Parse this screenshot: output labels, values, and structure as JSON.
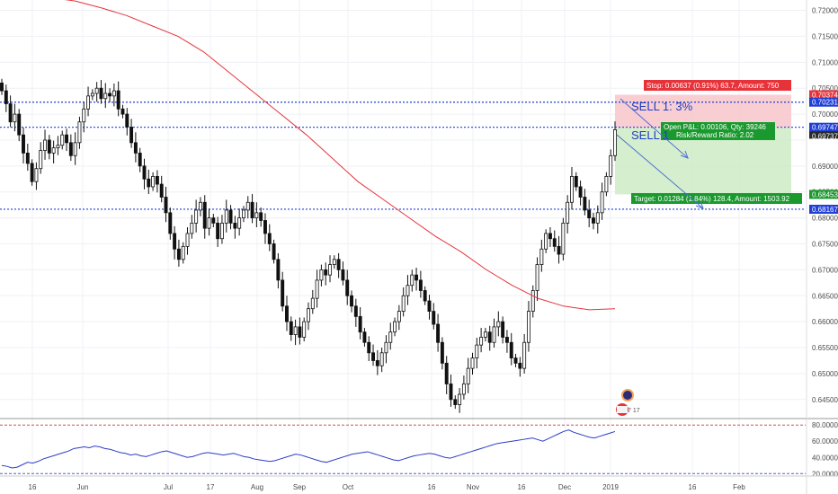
{
  "chart_data": [
    {
      "type": "candlestick",
      "price_axis": {
        "ylim": [
          0.6415,
          0.722
        ],
        "tick_labels": [
          "0.72000",
          "0.71500",
          "0.71000",
          "0.70500",
          "0.70000",
          "0.69500",
          "0.69000",
          "0.68500",
          "0.68000",
          "0.67500",
          "0.67000",
          "0.66500",
          "0.66000",
          "0.65500",
          "0.65000",
          "0.64500"
        ],
        "tick_values": [
          0.72,
          0.715,
          0.71,
          0.705,
          0.7,
          0.695,
          0.69,
          0.685,
          0.68,
          0.675,
          0.67,
          0.665,
          0.66,
          0.655,
          0.65,
          0.645
        ]
      },
      "x_axis_labels": [
        "16",
        "Jun",
        "Jul",
        "17",
        "Aug",
        "Sep",
        "Oct",
        "16",
        "Nov",
        "16",
        "Dec",
        "2019",
        "16",
        "Feb"
      ],
      "candles_close": [
        0.7045,
        0.702,
        0.6985,
        0.7,
        0.696,
        0.6925,
        0.6905,
        0.687,
        0.6895,
        0.693,
        0.695,
        0.6925,
        0.6935,
        0.694,
        0.696,
        0.6945,
        0.692,
        0.6945,
        0.6985,
        0.701,
        0.7035,
        0.704,
        0.705,
        0.703,
        0.704,
        0.7035,
        0.7045,
        0.701,
        0.7,
        0.6975,
        0.6945,
        0.6925,
        0.69,
        0.6875,
        0.686,
        0.688,
        0.6865,
        0.684,
        0.681,
        0.677,
        0.674,
        0.672,
        0.6745,
        0.677,
        0.679,
        0.6815,
        0.683,
        0.678,
        0.68,
        0.679,
        0.676,
        0.679,
        0.6815,
        0.679,
        0.678,
        0.68,
        0.6815,
        0.683,
        0.68,
        0.681,
        0.6795,
        0.677,
        0.675,
        0.672,
        0.668,
        0.663,
        0.66,
        0.6575,
        0.659,
        0.657,
        0.66,
        0.6625,
        0.6645,
        0.668,
        0.67,
        0.669,
        0.671,
        0.672,
        0.67,
        0.668,
        0.665,
        0.663,
        0.661,
        0.658,
        0.656,
        0.654,
        0.6525,
        0.6515,
        0.654,
        0.656,
        0.658,
        0.66,
        0.662,
        0.665,
        0.667,
        0.669,
        0.668,
        0.666,
        0.664,
        0.662,
        0.6595,
        0.656,
        0.652,
        0.648,
        0.645,
        0.644,
        0.646,
        0.648,
        0.651,
        0.653,
        0.6555,
        0.657,
        0.658,
        0.656,
        0.659,
        0.66,
        0.657,
        0.656,
        0.653,
        0.652,
        0.651,
        0.656,
        0.662,
        0.666,
        0.671,
        0.674,
        0.677,
        0.676,
        0.6745,
        0.673,
        0.679,
        0.683,
        0.688,
        0.686,
        0.684,
        0.6815,
        0.68,
        0.679,
        0.681,
        0.685,
        0.688,
        0.692,
        0.697
      ],
      "moving_average_close": [
        0.7225,
        0.7218,
        0.7205,
        0.719,
        0.717,
        0.715,
        0.712,
        0.708,
        0.704,
        0.7,
        0.696,
        0.6915,
        0.687,
        0.6835,
        0.68,
        0.6765,
        0.6735,
        0.67,
        0.667,
        0.6645,
        0.663,
        0.6623,
        0.6625
      ],
      "target_zone": {
        "stop": 0.70374,
        "entry": 0.69737,
        "target": 0.68453
      },
      "horizontal_levels": [
        0.70231,
        0.69747,
        0.68167
      ],
      "price_badges": [
        {
          "label": "0.70374",
          "color": "#e8323a"
        },
        {
          "label": "0.70231",
          "color": "#1f3fd6"
        },
        {
          "label": "0.69747",
          "color": "#1f3fd6"
        },
        {
          "label": "0.69737",
          "color": "#2a2a2a"
        },
        {
          "label": "0.69631",
          "color": "#ffffff"
        },
        {
          "label": "0.68453",
          "color": "#1a9a2e"
        },
        {
          "label": "0.68167",
          "color": "#1f3fd6"
        }
      ],
      "series": [
        {
          "name": "",
          "color": "#111111"
        },
        {
          "name": "",
          "color": "#e8323a"
        }
      ]
    },
    {
      "type": "line",
      "indicator_axis": {
        "ylim": [
          17,
          88
        ],
        "tick_labels": [
          "80.0000",
          "60.0000",
          "40.0000",
          "20.0000"
        ],
        "tick_values": [
          80,
          60,
          40,
          20
        ]
      },
      "values": [
        30,
        29,
        27,
        28,
        31,
        34,
        33,
        35,
        38,
        40,
        42,
        44,
        46,
        48,
        51,
        52,
        53,
        52,
        54,
        53,
        51,
        50,
        48,
        46,
        45,
        43,
        44,
        42,
        41,
        43,
        45,
        47,
        48,
        46,
        44,
        42,
        40,
        41,
        43,
        45,
        46,
        45,
        44,
        43,
        44,
        45,
        43,
        41,
        40,
        38,
        37,
        36,
        35,
        36,
        38,
        40,
        42,
        44,
        43,
        41,
        39,
        37,
        35,
        34,
        36,
        38,
        40,
        42,
        44,
        45,
        46,
        47,
        45,
        43,
        41,
        39,
        37,
        36,
        38,
        40,
        42,
        43,
        44,
        45,
        44,
        42,
        40,
        39,
        41,
        43,
        45,
        47,
        49,
        51,
        53,
        55,
        57,
        58,
        59,
        60,
        61,
        62,
        63,
        64,
        62,
        60,
        63,
        66,
        69,
        72,
        74,
        71,
        69,
        67,
        65,
        64,
        66,
        68,
        70,
        72
      ],
      "overbought": 80,
      "oversold": 20,
      "series": [
        {
          "name": "",
          "color": "#2e3cc7"
        }
      ]
    }
  ],
  "overlays": {
    "stop_label": "Stop: 0.00637 (0.91%) 63.7, Amount: 750",
    "open_pnl_label": "Open P&L: 0.00106, Qty: 39246",
    "risk_reward_label": "Risk/Reward Ratio: 2.02",
    "target_label": "Target: 0.01284 (1.84%) 128.4, Amount: 1503.92",
    "sell_label_1": "SELL 1: 3%",
    "sell_label_2": "SELL 1",
    "event_badge_text": "7 17",
    "colors": {
      "stop_zone": "#f7c6cb",
      "target_zone": "#cdebc6",
      "level_line": "#1f3fd6",
      "ma_line": "#e8323a",
      "indicator": "#2e3cc7"
    }
  }
}
